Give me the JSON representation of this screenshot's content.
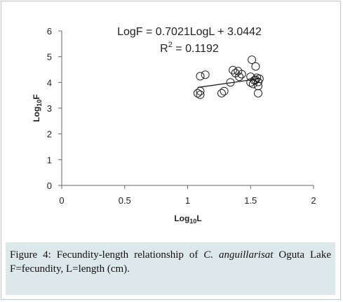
{
  "chart_data": {
    "type": "scatter",
    "title": "",
    "xlabel_main": "Log",
    "xlabel_sub": "10",
    "xlabel_tail": "L",
    "ylabel_main": "Log",
    "ylabel_sub": "10",
    "ylabel_tail": "F",
    "xlim": [
      0,
      2
    ],
    "ylim": [
      0,
      6
    ],
    "x_ticks": [
      0,
      0.5,
      1,
      1.5,
      2
    ],
    "x_tick_labels": [
      "0",
      "0.5",
      "1",
      "1.5",
      "2"
    ],
    "y_ticks": [
      0,
      1,
      2,
      3,
      4,
      5,
      6
    ],
    "y_tick_labels": [
      "0",
      "1",
      "2",
      "3",
      "4",
      "5",
      "6"
    ],
    "grid": false,
    "points": [
      {
        "x": 1.08,
        "y": 3.58
      },
      {
        "x": 1.1,
        "y": 3.52
      },
      {
        "x": 1.1,
        "y": 3.66
      },
      {
        "x": 1.1,
        "y": 4.24
      },
      {
        "x": 1.14,
        "y": 4.3
      },
      {
        "x": 1.27,
        "y": 3.58
      },
      {
        "x": 1.29,
        "y": 3.66
      },
      {
        "x": 1.34,
        "y": 4.0
      },
      {
        "x": 1.36,
        "y": 4.48
      },
      {
        "x": 1.38,
        "y": 4.36
      },
      {
        "x": 1.4,
        "y": 4.44
      },
      {
        "x": 1.41,
        "y": 4.22
      },
      {
        "x": 1.43,
        "y": 4.32
      },
      {
        "x": 1.5,
        "y": 4.22
      },
      {
        "x": 1.5,
        "y": 4.0
      },
      {
        "x": 1.51,
        "y": 4.88
      },
      {
        "x": 1.52,
        "y": 3.94
      },
      {
        "x": 1.53,
        "y": 4.08
      },
      {
        "x": 1.54,
        "y": 4.62
      },
      {
        "x": 1.54,
        "y": 4.1
      },
      {
        "x": 1.55,
        "y": 4.18
      },
      {
        "x": 1.56,
        "y": 4.02
      },
      {
        "x": 1.56,
        "y": 3.86
      },
      {
        "x": 1.56,
        "y": 3.58
      },
      {
        "x": 1.57,
        "y": 4.14
      }
    ],
    "trendline": {
      "x0": 1.08,
      "x1": 1.57,
      "slope": 0.7021,
      "intercept": 3.0442
    },
    "equation": "LogF = 0.7021LogL + 3.0442",
    "r2_prefix": "R",
    "r2_sup": "2",
    "r2_suffix": " = 0.1192"
  },
  "caption": {
    "label": "Figure 4:",
    "text_before": " Fecundity-length relationship of ",
    "species": "C. anguillarisat",
    "text_after": " Oguta Lake F=fecundity, L=length (cm)."
  }
}
